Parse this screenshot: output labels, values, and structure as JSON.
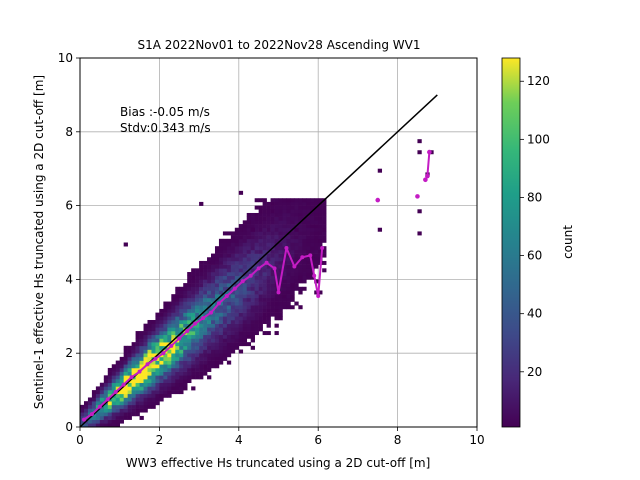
{
  "chart_data": {
    "type": "heatmap",
    "title": "S1A 2022Nov01 to 2022Nov28 Ascending WV1",
    "xlabel": "WW3 effective Hs truncated using a 2D cut-off [m]",
    "ylabel": "Sentinel-1 effective Hs truncated using a 2D cut-off [m]",
    "xlim": [
      0,
      10
    ],
    "ylim": [
      0,
      10
    ],
    "x_ticks": [
      0,
      2,
      4,
      6,
      8,
      10
    ],
    "y_ticks": [
      0,
      2,
      4,
      6,
      8,
      10
    ],
    "grid": true,
    "annotations": [
      "Bias :-0.05 m/s",
      "Stdv:0.343 m/s"
    ],
    "colorbar": {
      "label": "count",
      "colormap": "viridis",
      "range": [
        1,
        128
      ],
      "ticks": [
        20,
        40,
        60,
        80,
        100,
        120
      ]
    },
    "reference_line": {
      "x": [
        0,
        9
      ],
      "y": [
        0,
        9
      ],
      "color": "#000000"
    },
    "mean_curve": {
      "color": "#c41cc4",
      "x": [
        0.1,
        0.3,
        0.5,
        0.7,
        0.9,
        1.1,
        1.3,
        1.5,
        1.7,
        1.9,
        2.1,
        2.3,
        2.5,
        2.7,
        2.9,
        3.1,
        3.3,
        3.5,
        3.7,
        3.9,
        4.1,
        4.3,
        4.5,
        4.7,
        4.9,
        5.0,
        5.2,
        5.4,
        5.6,
        5.8,
        5.9,
        6.0,
        6.1
      ],
      "y": [
        0.2,
        0.35,
        0.55,
        0.75,
        0.95,
        1.15,
        1.35,
        1.5,
        1.7,
        1.85,
        2.0,
        2.2,
        2.4,
        2.6,
        2.8,
        2.95,
        3.1,
        3.35,
        3.55,
        3.75,
        3.95,
        4.1,
        4.3,
        4.45,
        4.3,
        3.65,
        4.85,
        4.35,
        4.6,
        4.65,
        4.1,
        3.55,
        4.85
      ]
    },
    "mean_points": [
      {
        "x": 7.5,
        "y": 6.15
      },
      {
        "x": 8.5,
        "y": 6.25
      },
      {
        "x": 8.7,
        "y": 6.7
      },
      {
        "x": 8.75,
        "y": 6.8
      },
      {
        "x": 8.8,
        "y": 7.45
      }
    ]
  }
}
